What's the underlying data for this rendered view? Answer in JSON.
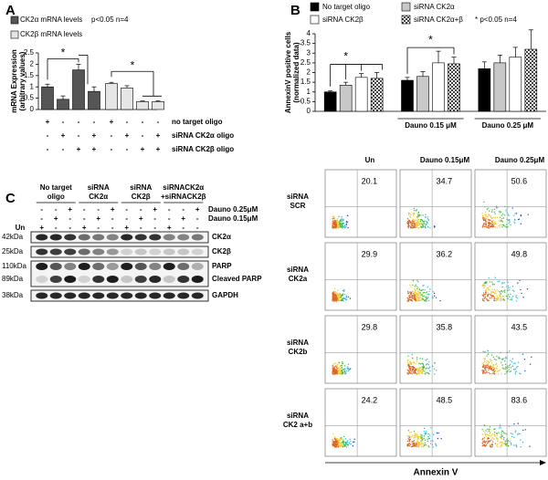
{
  "panel_labels": [
    "A",
    "B",
    "C"
  ],
  "chart_data": [
    {
      "type": "bar",
      "y_label": [
        "mRNA Expression",
        "(arbitrary values)"
      ],
      "annotation": "p<0.05  n=4",
      "significance_marks": [
        "*",
        "*"
      ],
      "categories": [
        null,
        null,
        null,
        null
      ],
      "series": [
        {
          "name": "CK2α mRNA levels",
          "color": "#555555",
          "values": [
            1.0,
            0.45,
            1.75,
            0.8
          ],
          "errors": [
            0.12,
            0.15,
            0.25,
            0.2
          ]
        },
        {
          "name": "CK2β mRNA levels",
          "color": "#e6e6e6",
          "values": [
            1.15,
            0.95,
            0.35,
            0.35
          ],
          "errors": [
            0.05,
            0.1,
            0.03,
            0.03
          ]
        }
      ],
      "ylim": [
        0,
        2.5
      ],
      "yticks": [
        0,
        0.5,
        1,
        1.5,
        2,
        2.5
      ],
      "condition_table": [
        {
          "label": "no target oligo",
          "signs": [
            "+",
            "-",
            "-",
            "-",
            "+",
            "-",
            "-",
            "-"
          ]
        },
        {
          "label": "siRNA CK2α oligo",
          "signs": [
            "-",
            "+",
            "-",
            "+",
            "-",
            "+",
            "-",
            "+"
          ]
        },
        {
          "label": "siRNA CK2β oligo",
          "signs": [
            "-",
            "-",
            "+",
            "+",
            "-",
            "-",
            "+",
            "+"
          ]
        }
      ]
    },
    {
      "type": "bar",
      "y_label": [
        "AnnexinV positive cells",
        "(normalized data)"
      ],
      "annotation": "* p<0.05     n=4",
      "significance_marks": [
        "*",
        "*"
      ],
      "categories": [
        null,
        "Dauno 0.15 μM",
        "Dauno 0.25 μM"
      ],
      "series": [
        {
          "name": "No target oligo",
          "color": "#000000",
          "values": [
            1.0,
            1.6,
            2.2
          ],
          "errors": [
            0.05,
            0.15,
            0.35
          ]
        },
        {
          "name": "siRNA CK2α",
          "color": "#c8c8c8",
          "values": [
            1.35,
            1.8,
            2.5
          ],
          "errors": [
            0.15,
            0.25,
            0.4
          ]
        },
        {
          "name": "siRNA CK2β",
          "color": "#ffffff",
          "values": [
            1.75,
            2.5,
            2.8
          ],
          "errors": [
            0.2,
            0.6,
            0.5
          ]
        },
        {
          "name": "siRNA CK2α+β",
          "color": "#444444",
          "pattern": "checker",
          "values": [
            1.7,
            2.45,
            3.2
          ],
          "errors": [
            0.3,
            0.35,
            1.0
          ]
        }
      ],
      "ylim": [
        0,
        4
      ],
      "yticks": [
        0,
        0.5,
        1,
        1.5,
        2,
        2.5,
        3,
        3.5,
        4
      ]
    }
  ],
  "blot": {
    "groups": [
      [
        "No target",
        "oligo"
      ],
      [
        "siRNA",
        "CK2α"
      ],
      [
        "siRNA",
        "CK2β"
      ],
      [
        "siRNACK2α",
        "+siRNACK2β"
      ]
    ],
    "treatment_rows": [
      {
        "label": "Dauno 0.25μM",
        "signs": [
          "-",
          "-",
          "+",
          "-",
          "-",
          "+",
          "-",
          "-",
          "+",
          "-",
          "-",
          "+"
        ]
      },
      {
        "label": "Dauno 0.15μM",
        "signs": [
          "-",
          "+",
          "-",
          "-",
          "+",
          "-",
          "-",
          "+",
          "-",
          "-",
          "+",
          "-"
        ]
      },
      {
        "label": "Un",
        "signs": [
          "+",
          "-",
          "-",
          "+",
          "-",
          "-",
          "+",
          "-",
          "-",
          "+",
          "-",
          "-"
        ]
      }
    ],
    "bands": [
      {
        "size": "42kDa",
        "name": "CK2α"
      },
      {
        "size": "25kDa",
        "name": "CK2β"
      },
      {
        "size": "110kDa",
        "name": "PARP"
      },
      {
        "size": "89kDa",
        "name": "Cleaved PARP"
      },
      {
        "size": "38kDa",
        "name": "GAPDH"
      }
    ]
  },
  "flow": {
    "columns": [
      "Un",
      "Dauno 0.15μM",
      "Dauno 0.25μM"
    ],
    "rows": [
      {
        "label": [
          "siRNA",
          "SCR"
        ],
        "values": [
          "20.1",
          "34.7",
          "50.6"
        ]
      },
      {
        "label": [
          "siRNA",
          "CK2a"
        ],
        "values": [
          "29.9",
          "36.2",
          "49.8"
        ]
      },
      {
        "label": [
          "siRNA",
          "CK2b"
        ],
        "values": [
          "29.8",
          "35.8",
          "43.5"
        ]
      },
      {
        "label": [
          "siRNA",
          "CK2 a+b"
        ],
        "values": [
          "24.2",
          "48.5",
          "83.6"
        ]
      }
    ],
    "x_label": "Annexin V"
  }
}
